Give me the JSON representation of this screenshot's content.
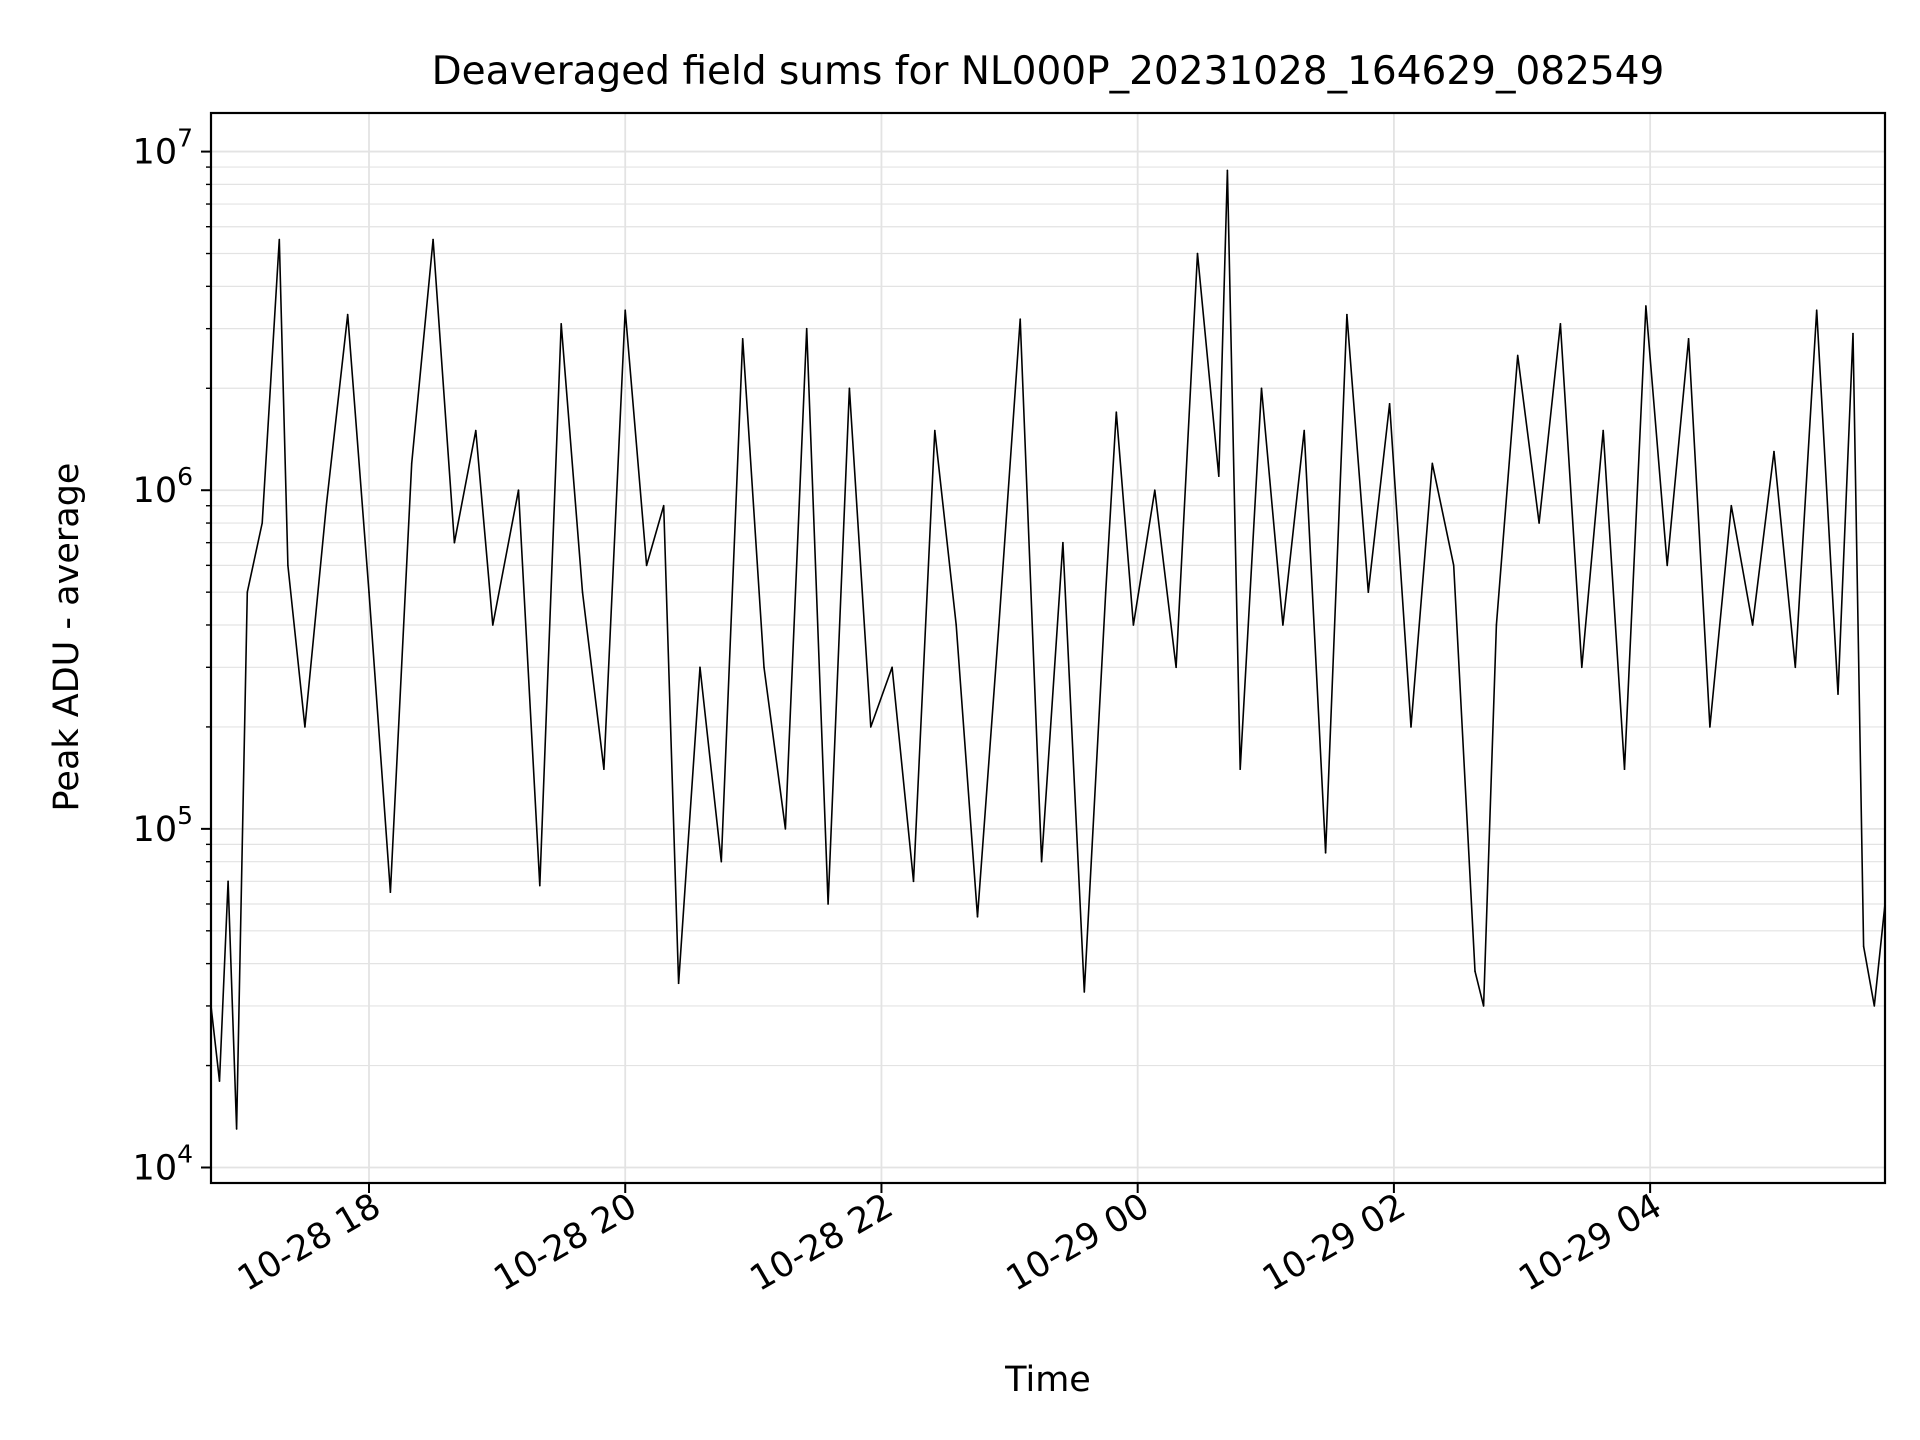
{
  "chart_data": {
    "type": "line",
    "title": "Deaveraged field sums for NL000P_20231028_164629_082549",
    "xlabel": "Time",
    "ylabel": "Peak ADU - average",
    "yscale": "log",
    "ylim": [
      9000,
      13000000
    ],
    "yticks": [
      {
        "value": 10000,
        "base": "10",
        "exp": "4"
      },
      {
        "value": 100000,
        "base": "10",
        "exp": "5"
      },
      {
        "value": 1000000,
        "base": "10",
        "exp": "6"
      },
      {
        "value": 10000000,
        "base": "10",
        "exp": "7"
      }
    ],
    "xlim": [
      "2023-10-28 16:46",
      "2023-10-29 05:50"
    ],
    "xticks": [
      {
        "value": "2023-10-28 18:00",
        "label": "10-28 18"
      },
      {
        "value": "2023-10-28 20:00",
        "label": "10-28 20"
      },
      {
        "value": "2023-10-28 22:00",
        "label": "10-28 22"
      },
      {
        "value": "2023-10-29 00:00",
        "label": "10-29 00"
      },
      {
        "value": "2023-10-29 02:00",
        "label": "10-29 02"
      },
      {
        "value": "2023-10-29 04:00",
        "label": "10-29 04"
      }
    ],
    "grid": true,
    "line_color": "#000000",
    "series": [
      {
        "points": [
          [
            "2023-10-28 16:46",
            30000
          ],
          [
            "2023-10-28 16:50",
            18000
          ],
          [
            "2023-10-28 16:54",
            70000
          ],
          [
            "2023-10-28 16:58",
            13000
          ],
          [
            "2023-10-28 17:03",
            500000
          ],
          [
            "2023-10-28 17:10",
            800000
          ],
          [
            "2023-10-28 17:18",
            5500000
          ],
          [
            "2023-10-28 17:22",
            600000
          ],
          [
            "2023-10-28 17:30",
            200000
          ],
          [
            "2023-10-28 17:40",
            900000
          ],
          [
            "2023-10-28 17:50",
            3300000
          ],
          [
            "2023-10-28 18:00",
            500000
          ],
          [
            "2023-10-28 18:10",
            65000
          ],
          [
            "2023-10-28 18:20",
            1200000
          ],
          [
            "2023-10-28 18:30",
            5500000
          ],
          [
            "2023-10-28 18:40",
            700000
          ],
          [
            "2023-10-28 18:50",
            1500000
          ],
          [
            "2023-10-28 18:58",
            400000
          ],
          [
            "2023-10-28 19:10",
            1000000
          ],
          [
            "2023-10-28 19:20",
            68000
          ],
          [
            "2023-10-28 19:30",
            3100000
          ],
          [
            "2023-10-28 19:40",
            500000
          ],
          [
            "2023-10-28 19:50",
            150000
          ],
          [
            "2023-10-28 20:00",
            3400000
          ],
          [
            "2023-10-28 20:10",
            600000
          ],
          [
            "2023-10-28 20:18",
            900000
          ],
          [
            "2023-10-28 20:25",
            35000
          ],
          [
            "2023-10-28 20:35",
            300000
          ],
          [
            "2023-10-28 20:45",
            80000
          ],
          [
            "2023-10-28 20:55",
            2800000
          ],
          [
            "2023-10-28 21:05",
            300000
          ],
          [
            "2023-10-28 21:15",
            100000
          ],
          [
            "2023-10-28 21:25",
            3000000
          ],
          [
            "2023-10-28 21:35",
            60000
          ],
          [
            "2023-10-28 21:45",
            2000000
          ],
          [
            "2023-10-28 21:55",
            200000
          ],
          [
            "2023-10-28 22:05",
            300000
          ],
          [
            "2023-10-28 22:15",
            70000
          ],
          [
            "2023-10-28 22:25",
            1500000
          ],
          [
            "2023-10-28 22:35",
            400000
          ],
          [
            "2023-10-28 22:45",
            55000
          ],
          [
            "2023-10-28 22:55",
            400000
          ],
          [
            "2023-10-28 23:05",
            3200000
          ],
          [
            "2023-10-28 23:15",
            80000
          ],
          [
            "2023-10-28 23:25",
            700000
          ],
          [
            "2023-10-28 23:35",
            33000
          ],
          [
            "2023-10-28 23:45",
            500000
          ],
          [
            "2023-10-28 23:50",
            1700000
          ],
          [
            "2023-10-28 23:58",
            400000
          ],
          [
            "2023-10-29 00:08",
            1000000
          ],
          [
            "2023-10-29 00:18",
            300000
          ],
          [
            "2023-10-29 00:28",
            5000000
          ],
          [
            "2023-10-29 00:38",
            1100000
          ],
          [
            "2023-10-29 00:42",
            8800000
          ],
          [
            "2023-10-29 00:48",
            150000
          ],
          [
            "2023-10-29 00:58",
            2000000
          ],
          [
            "2023-10-29 01:08",
            400000
          ],
          [
            "2023-10-29 01:18",
            1500000
          ],
          [
            "2023-10-29 01:28",
            85000
          ],
          [
            "2023-10-29 01:38",
            3300000
          ],
          [
            "2023-10-29 01:48",
            500000
          ],
          [
            "2023-10-29 01:58",
            1800000
          ],
          [
            "2023-10-29 02:08",
            200000
          ],
          [
            "2023-10-29 02:18",
            1200000
          ],
          [
            "2023-10-29 02:28",
            600000
          ],
          [
            "2023-10-29 02:38",
            38000
          ],
          [
            "2023-10-29 02:42",
            30000
          ],
          [
            "2023-10-29 02:48",
            400000
          ],
          [
            "2023-10-29 02:58",
            2500000
          ],
          [
            "2023-10-29 03:08",
            800000
          ],
          [
            "2023-10-29 03:18",
            3100000
          ],
          [
            "2023-10-29 03:28",
            300000
          ],
          [
            "2023-10-29 03:38",
            1500000
          ],
          [
            "2023-10-29 03:48",
            150000
          ],
          [
            "2023-10-29 03:58",
            3500000
          ],
          [
            "2023-10-29 04:08",
            600000
          ],
          [
            "2023-10-29 04:18",
            2800000
          ],
          [
            "2023-10-29 04:28",
            200000
          ],
          [
            "2023-10-29 04:38",
            900000
          ],
          [
            "2023-10-29 04:48",
            400000
          ],
          [
            "2023-10-29 04:58",
            1300000
          ],
          [
            "2023-10-29 05:08",
            300000
          ],
          [
            "2023-10-29 05:18",
            3400000
          ],
          [
            "2023-10-29 05:28",
            250000
          ],
          [
            "2023-10-29 05:35",
            2900000
          ],
          [
            "2023-10-29 05:40",
            45000
          ],
          [
            "2023-10-29 05:45",
            30000
          ],
          [
            "2023-10-29 05:50",
            60000
          ]
        ]
      }
    ]
  }
}
